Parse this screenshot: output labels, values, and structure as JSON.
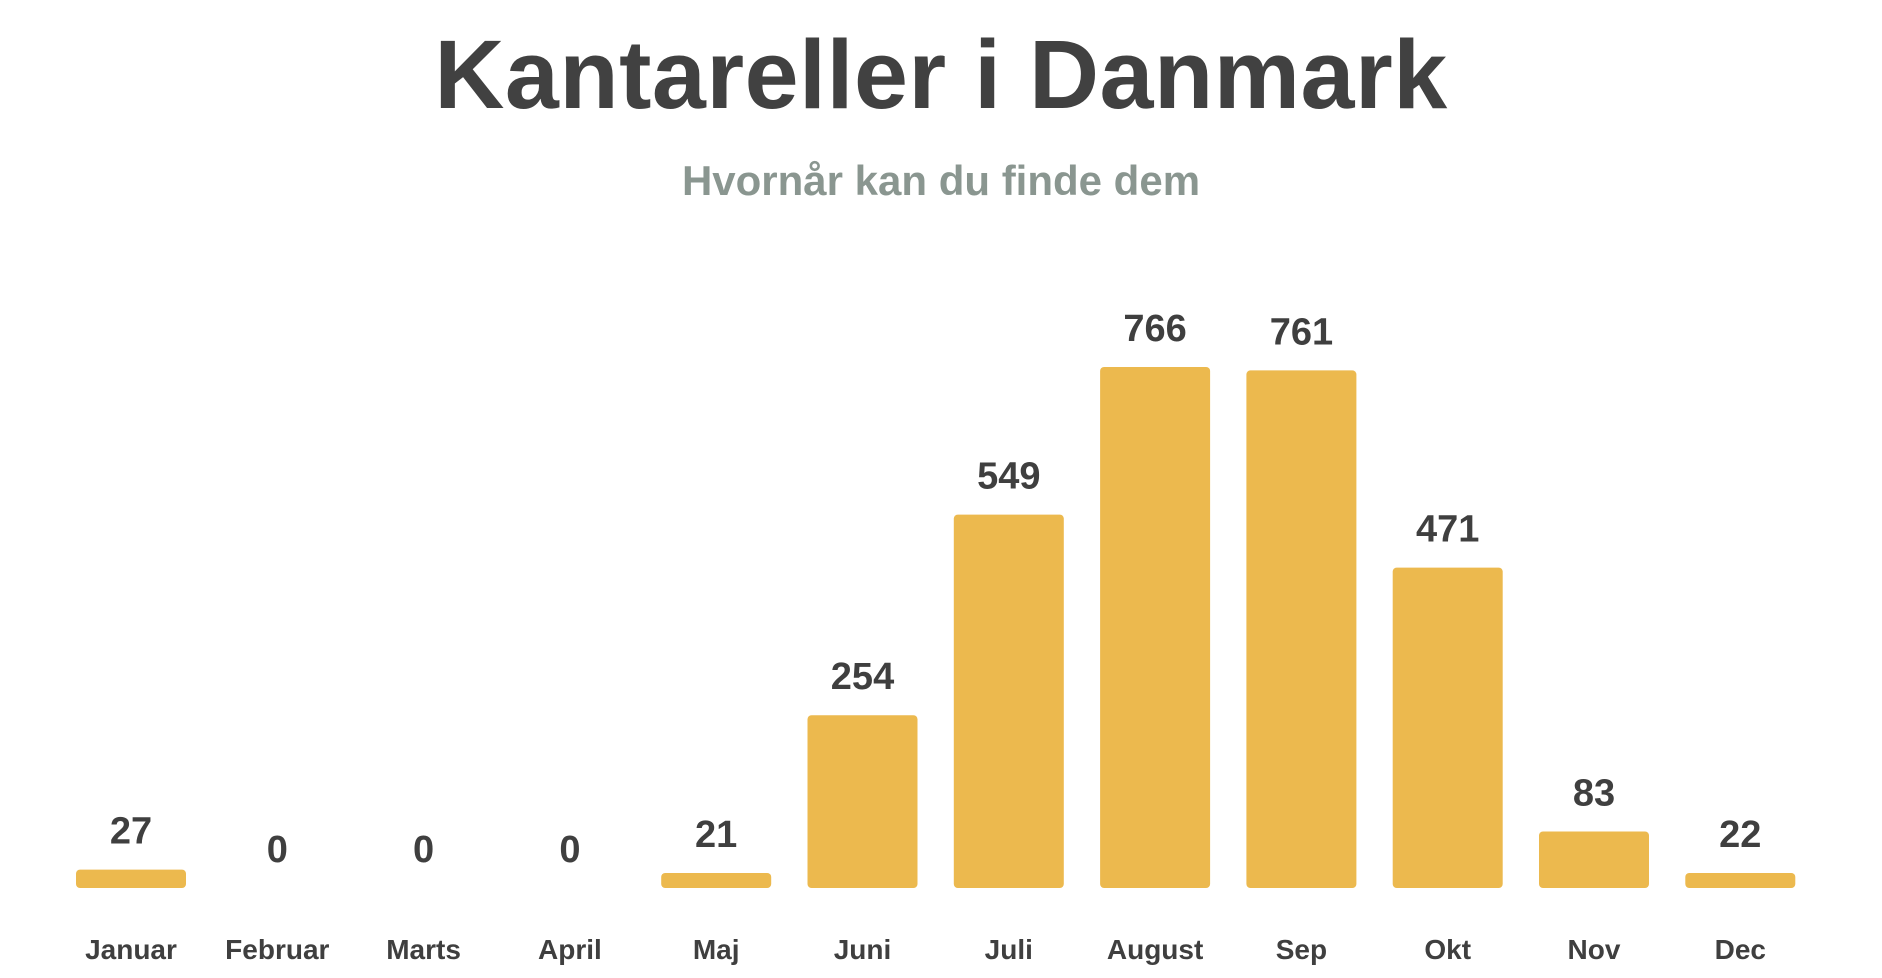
{
  "header": {
    "title": "Kantareller i Danmark",
    "subtitle": "Hvornår kan du finde dem"
  },
  "colors": {
    "bar": "#ecb94e",
    "title": "#414141",
    "subtitle": "#8a9690",
    "labels": "#3f3f3f"
  },
  "chart_data": {
    "type": "bar",
    "title": "Kantareller i Danmark",
    "subtitle": "Hvornår kan du finde dem",
    "xlabel": "",
    "ylabel": "",
    "categories": [
      "Januar",
      "Februar",
      "Marts",
      "April",
      "Maj",
      "Juni",
      "Juli",
      "August",
      "Sep",
      "Okt",
      "Nov",
      "Dec"
    ],
    "values": [
      27,
      0,
      0,
      0,
      21,
      254,
      549,
      766,
      761,
      471,
      83,
      22
    ],
    "ylim": [
      0,
      766
    ],
    "grid": false,
    "data_labels": true
  }
}
